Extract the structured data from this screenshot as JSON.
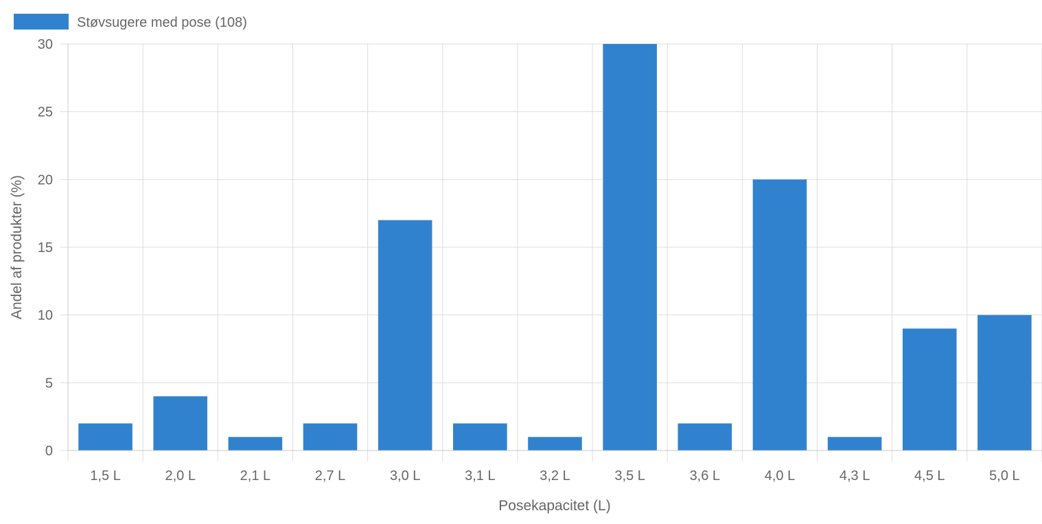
{
  "chart_data": {
    "type": "bar",
    "categories": [
      "1,5 L",
      "2,0 L",
      "2,1 L",
      "2,7 L",
      "3,0 L",
      "3,1 L",
      "3,2 L",
      "3,5 L",
      "3,6 L",
      "4,0 L",
      "4,3 L",
      "4,5 L",
      "5,0 L"
    ],
    "series": [
      {
        "name": "Støvsugere med pose (108)",
        "values": [
          2,
          4,
          1,
          2,
          17,
          2,
          1,
          30,
          2,
          20,
          1,
          9,
          10
        ]
      }
    ],
    "xlabel": "Posekapacitet (L)",
    "ylabel": "Andel af produkter (%)",
    "ylim": [
      0,
      30
    ],
    "yticks": [
      "0",
      "5",
      "10",
      "15",
      "20",
      "25",
      "30"
    ],
    "grid": true,
    "legend_position": "top-left"
  },
  "colors": {
    "bar": "#3182ce",
    "grid": "#dddddd",
    "text": "#666666"
  }
}
